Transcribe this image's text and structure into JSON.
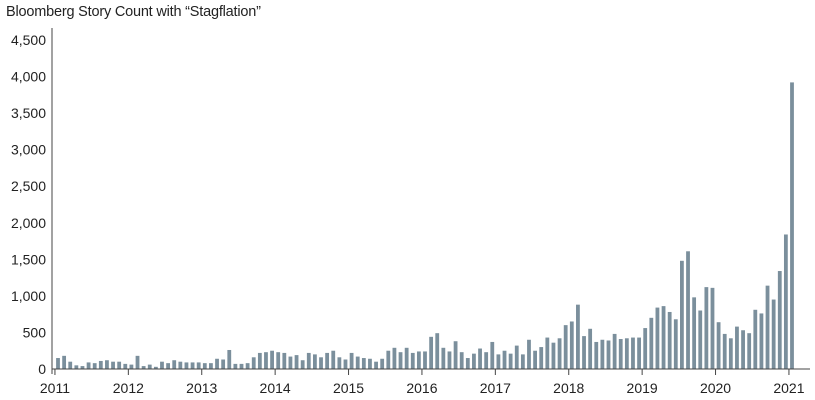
{
  "chart_data": {
    "type": "bar",
    "title": "Bloomberg Story Count with “Stagflation”",
    "xlabel": "",
    "ylabel": "",
    "ylim": [
      0,
      4500
    ],
    "grid": false,
    "legend": "none",
    "bar_color": "#7b8f9c",
    "axis_color": "#444444",
    "yticks": [
      "0",
      "500",
      "1,000",
      "1,500",
      "2,000",
      "2,500",
      "3,000",
      "3,500",
      "4,000",
      "4,500"
    ],
    "ytick_values": [
      0,
      500,
      1000,
      1500,
      2000,
      2500,
      3000,
      3500,
      4000,
      4500
    ],
    "xticks": [
      "2011",
      "2012",
      "2013",
      "2014",
      "2015",
      "2016",
      "2017",
      "2018",
      "2019",
      "2020",
      "2021"
    ],
    "series": [
      {
        "values": [
          150,
          180,
          100,
          50,
          40,
          90,
          80,
          110,
          120,
          100,
          100,
          70,
          60,
          180,
          40,
          60,
          30,
          100,
          80,
          120,
          100,
          90,
          90,
          90,
          80,
          80,
          140,
          130,
          260,
          70,
          70,
          80,
          160,
          220,
          230,
          250,
          230,
          220,
          170,
          190,
          120,
          220,
          200,
          160,
          220,
          250,
          160,
          130,
          220,
          170,
          150,
          140,
          100,
          140,
          250,
          290,
          230,
          290,
          220,
          240,
          240,
          440,
          490,
          290,
          240,
          380,
          230,
          150,
          210,
          280,
          230,
          370,
          200,
          250,
          210,
          320,
          200,
          400,
          250,
          300,
          430,
          360,
          420,
          600,
          650,
          880,
          450,
          550,
          370,
          400,
          390,
          480,
          410,
          420,
          430,
          430,
          560,
          700,
          840,
          860,
          780,
          680,
          1480,
          1610,
          980,
          800,
          1120,
          1110,
          640,
          480,
          420,
          580,
          530,
          490,
          810,
          760,
          1140,
          950,
          1340,
          1840,
          3920
        ]
      }
    ]
  }
}
